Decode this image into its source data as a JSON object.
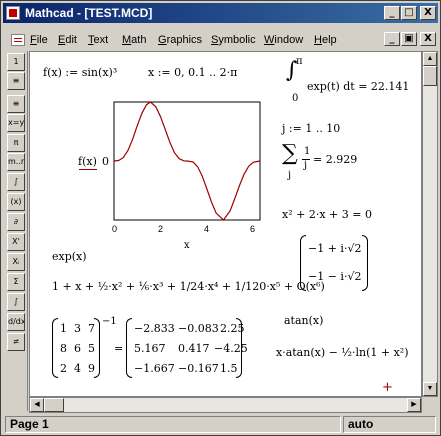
{
  "window": {
    "title": "Mathcad - [TEST.MCD]"
  },
  "window_controls": {
    "minimize": "_",
    "maximize": "□",
    "close": "X"
  },
  "doc_controls": {
    "minimize": "_",
    "restore": "▣",
    "close": "X"
  },
  "menu": [
    {
      "pre": "",
      "u": "F",
      "post": "ile"
    },
    {
      "pre": "",
      "u": "E",
      "post": "dit"
    },
    {
      "pre": "",
      "u": "T",
      "post": "ext"
    },
    {
      "pre": "",
      "u": "M",
      "post": "ath"
    },
    {
      "pre": "",
      "u": "G",
      "post": "raphics"
    },
    {
      "pre": "",
      "u": "S",
      "post": "ymbolic"
    },
    {
      "pre": "",
      "u": "W",
      "post": "indow"
    },
    {
      "pre": "",
      "u": "H",
      "post": "elp"
    }
  ],
  "palette": [
    "1",
    "≡",
    "≡",
    "x=y",
    "π",
    "m..n",
    "∫",
    "(x)",
    "∂",
    "X'",
    "Xᵢ",
    "Σ",
    "∫",
    "d/dx",
    "≠"
  ],
  "worksheet": {
    "def_f": "f(x) := sin(x)³",
    "range_x": "x := 0, 0.1 .. 2·π",
    "integral_upper": "π",
    "integral_lower": "0",
    "integral_expr": "exp(t) dt = 22.141",
    "range_j": "j := 1 .. 10",
    "sum_var": "j",
    "sum_num": "1",
    "sum_den": "j",
    "sum_result": "= 2.929",
    "quadratic": "x² + 2·x + 3 = 0",
    "roots": [
      "−1 + i·√2",
      "−1 − i·√2"
    ],
    "exp_label": "exp(x)",
    "series": "1 + x + ½·x² + ⅙·x³ + 1/24·x⁴ + 1/120·x⁵ + O(x⁶)",
    "atan_label": "atan(x)",
    "atan_integral": "x·atan(x) − ½·ln(1 + x²)",
    "matrix_lhs": [
      [
        "1",
        "3",
        "7"
      ],
      [
        "8",
        "6",
        "5"
      ],
      [
        "2",
        "4",
        "9"
      ]
    ],
    "matrix_exp": "−1",
    "matrix_eq": "=",
    "matrix_rhs": [
      [
        "−2.833",
        "−0.083",
        "2.25"
      ],
      [
        "5.167",
        "0.417",
        "−4.25"
      ],
      [
        "−1.667",
        "−0.167",
        "1.5"
      ]
    ],
    "cursor": "+"
  },
  "chart_data": {
    "type": "line",
    "function": "sin(x)^3",
    "x": [
      0,
      0.2,
      0.4,
      0.6,
      0.8,
      1.0,
      1.2,
      1.4,
      1.5708,
      1.8,
      2.0,
      2.2,
      2.4,
      2.6,
      2.8,
      3.0,
      3.1416,
      3.4,
      3.6,
      3.8,
      4.0,
      4.2,
      4.4,
      4.7124,
      5.0,
      5.2,
      5.4,
      5.6,
      5.8,
      6.0,
      6.2832
    ],
    "y": [
      0,
      0.008,
      0.058,
      0.177,
      0.368,
      0.596,
      0.809,
      0.955,
      1.0,
      0.918,
      0.752,
      0.54,
      0.32,
      0.143,
      0.04,
      0.003,
      0,
      -0.016,
      -0.099,
      -0.26,
      -0.475,
      -0.701,
      -0.885,
      -1.0,
      -0.842,
      -0.636,
      -0.415,
      -0.223,
      -0.086,
      -0.021,
      0
    ],
    "xlabel": "x",
    "ylabel": "f(x)",
    "x_ticks": [
      "0",
      "2",
      "4",
      "6"
    ],
    "y_tick_label": "0",
    "xlim": [
      0,
      6.2832
    ],
    "ylim": [
      -1,
      1
    ],
    "color": "#a00000",
    "grid": false
  },
  "status": {
    "page": "Page 1",
    "mode": "auto"
  }
}
